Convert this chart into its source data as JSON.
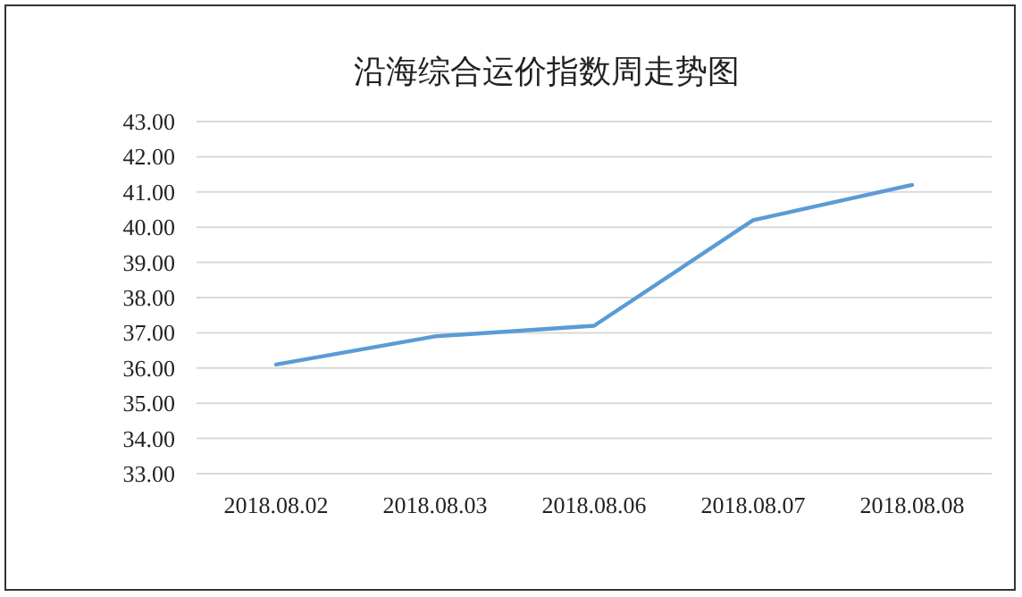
{
  "chart_data": {
    "type": "line",
    "title": "沿海综合运价指数周走势图",
    "categories": [
      "2018.08.02",
      "2018.08.03",
      "2018.08.06",
      "2018.08.07",
      "2018.08.08"
    ],
    "series": [
      {
        "color": "#5b9bd5",
        "values": [
          36.1,
          36.9,
          37.2,
          40.2,
          41.2
        ]
      }
    ],
    "ylim": [
      33,
      43
    ],
    "yticks": [
      {
        "value": 33,
        "label": "33.00"
      },
      {
        "value": 34,
        "label": "34.00"
      },
      {
        "value": 35,
        "label": "35.00"
      },
      {
        "value": 36,
        "label": "36.00"
      },
      {
        "value": 37,
        "label": "37.00"
      },
      {
        "value": 38,
        "label": "38.00"
      },
      {
        "value": 39,
        "label": "39.00"
      },
      {
        "value": 40,
        "label": "40.00"
      },
      {
        "value": 41,
        "label": "41.00"
      },
      {
        "value": 42,
        "label": "42.00"
      },
      {
        "value": 43,
        "label": "43.00"
      }
    ],
    "grid": "y",
    "marker": "none",
    "line_style": "solid"
  }
}
